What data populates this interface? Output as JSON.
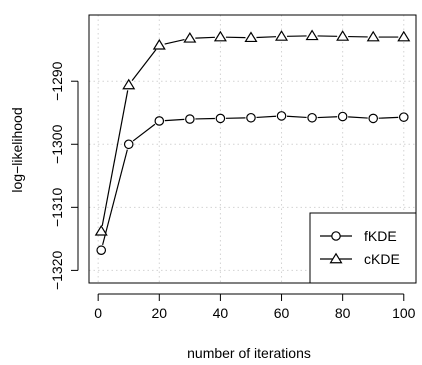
{
  "chart_data": {
    "type": "line",
    "title": "",
    "xlabel": "number of iterations",
    "ylabel": "log−likelihood",
    "xlim": [
      -3,
      104
    ],
    "ylim": [
      -1322,
      -1279.5
    ],
    "xticks": [
      0,
      20,
      40,
      60,
      80,
      100
    ],
    "yticks": [
      -1320,
      -1310,
      -1300,
      -1290
    ],
    "xtick_labels": [
      "0",
      "20",
      "40",
      "60",
      "80",
      "100"
    ],
    "ytick_labels": [
      "−1320",
      "−1310",
      "−1300",
      "−1290"
    ],
    "grid": true,
    "legend_position": "bottom-right",
    "x": [
      1,
      10,
      20,
      30,
      40,
      50,
      60,
      70,
      80,
      90,
      100
    ],
    "series": [
      {
        "name": "fKDE",
        "marker": "circle",
        "values": [
          -1316.8,
          -1300,
          -1296.3,
          -1296.0,
          -1295.9,
          -1295.8,
          -1295.5,
          -1295.8,
          -1295.6,
          -1295.9,
          -1295.7
        ]
      },
      {
        "name": "cKDE",
        "marker": "triangle",
        "values": [
          -1313.8,
          -1290.6,
          -1284.3,
          -1283.2,
          -1283.0,
          -1283.1,
          -1282.9,
          -1282.8,
          -1282.9,
          -1283.0,
          -1283.0
        ]
      }
    ],
    "colors": {
      "line": "#000000",
      "grid": "#d3d3d3",
      "background": "#ffffff"
    }
  }
}
